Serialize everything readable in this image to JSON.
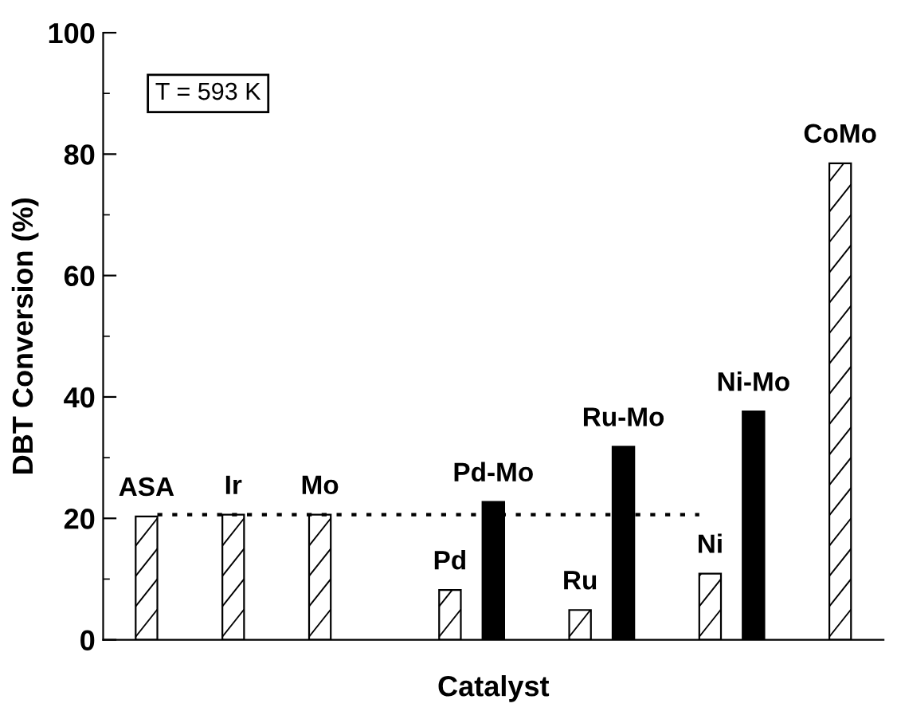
{
  "chart_data": {
    "type": "bar",
    "xlabel": "Catalyst",
    "ylabel": "DBT Conversion (%)",
    "categories": [
      "ASA",
      null,
      "Ir",
      null,
      "Mo",
      null,
      null,
      "Pd",
      "Pd-Mo",
      null,
      "Ru",
      "Ru-Mo",
      null,
      "Ni",
      "Ni-Mo",
      null,
      "CoMo"
    ],
    "values": [
      20.3,
      null,
      20.6,
      null,
      20.6,
      null,
      null,
      8.2,
      22.7,
      null,
      4.9,
      31.8,
      null,
      10.9,
      37.6,
      null,
      78.5
    ],
    "colors": [
      "#ffffff",
      null,
      "#ffffff",
      null,
      "#ffffff",
      null,
      null,
      "#ffffff",
      "#000000",
      null,
      "#ffffff",
      "#000000",
      null,
      "#ffffff",
      "#000000",
      null,
      "#ffffff"
    ],
    "ylim": [
      0,
      100
    ],
    "yticks": [
      0,
      20,
      40,
      60,
      80,
      100
    ],
    "grid": false,
    "legend": false,
    "ref_lines": [
      {
        "axis": "y",
        "value": 20.6,
        "line_style": "dotted",
        "color": "#000000"
      }
    ],
    "annotations": [
      "T = 593 K"
    ]
  }
}
